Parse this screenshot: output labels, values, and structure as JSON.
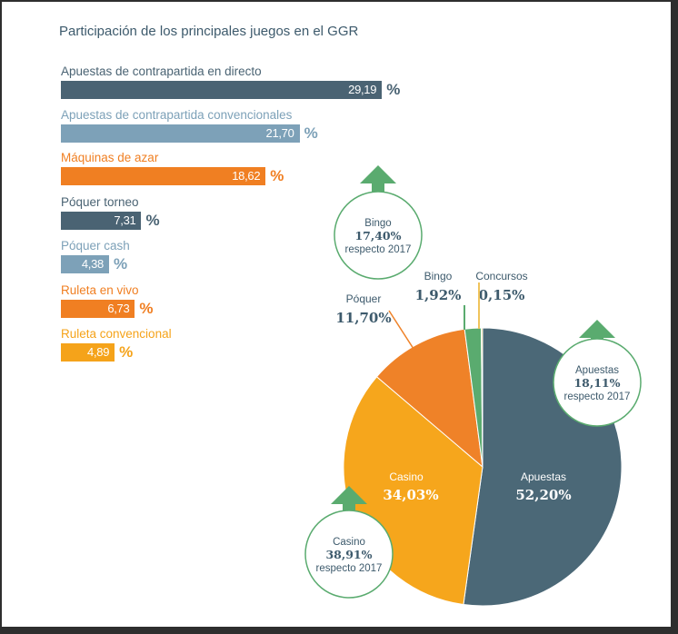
{
  "chart_data": [
    {
      "type": "bar",
      "orientation": "horizontal",
      "title": "Participación de los principales juegos en el GGR",
      "categories": [
        "Apuestas de contrapartida en directo",
        "Apuestas de contrapartida convencionales",
        "Máquinas de azar",
        "Póquer torneo",
        "Póquer cash",
        "Ruleta en vivo",
        "Ruleta convencional"
      ],
      "values": [
        29.19,
        21.7,
        18.62,
        7.31,
        4.38,
        6.73,
        4.89
      ],
      "value_labels": [
        "29,19",
        "21,70",
        "18,62",
        "7,31",
        "4,38",
        "6,73",
        "4,89"
      ],
      "unit": "%",
      "colors": [
        "#4a6373",
        "#7da1b8",
        "#f07f22",
        "#4a6373",
        "#7da1b8",
        "#f07f22",
        "#f5a31a"
      ]
    },
    {
      "type": "pie",
      "slices": [
        {
          "label": "Apuestas",
          "value": 52.2,
          "value_label": "52,20%",
          "color": "#4b6877"
        },
        {
          "label": "Casino",
          "value": 34.03,
          "value_label": "34,03%",
          "color": "#f6a61c"
        },
        {
          "label": "Póquer",
          "value": 11.7,
          "value_label": "11,70%",
          "color": "#ef8228"
        },
        {
          "label": "Bingo",
          "value": 1.92,
          "value_label": "1,92%",
          "color": "#5aab6f"
        },
        {
          "label": "Concursos",
          "value": 0.15,
          "value_label": "0,15%",
          "color": "#f0c45c"
        }
      ],
      "annotations": [
        {
          "label": "Bingo",
          "value": "17,40%",
          "note": "respecto 2017",
          "direction": "up"
        },
        {
          "label": "Apuestas",
          "value": "18,11%",
          "note": "respecto 2017",
          "direction": "up"
        },
        {
          "label": "Casino",
          "value": "38,91%",
          "note": "respecto 2017",
          "direction": "up"
        }
      ]
    }
  ],
  "colors": {
    "arrow": "#5aab6f",
    "bubble_border": "#5aab6f",
    "text_dark": "#3d5a6c",
    "text_light": "#7da1b8"
  }
}
